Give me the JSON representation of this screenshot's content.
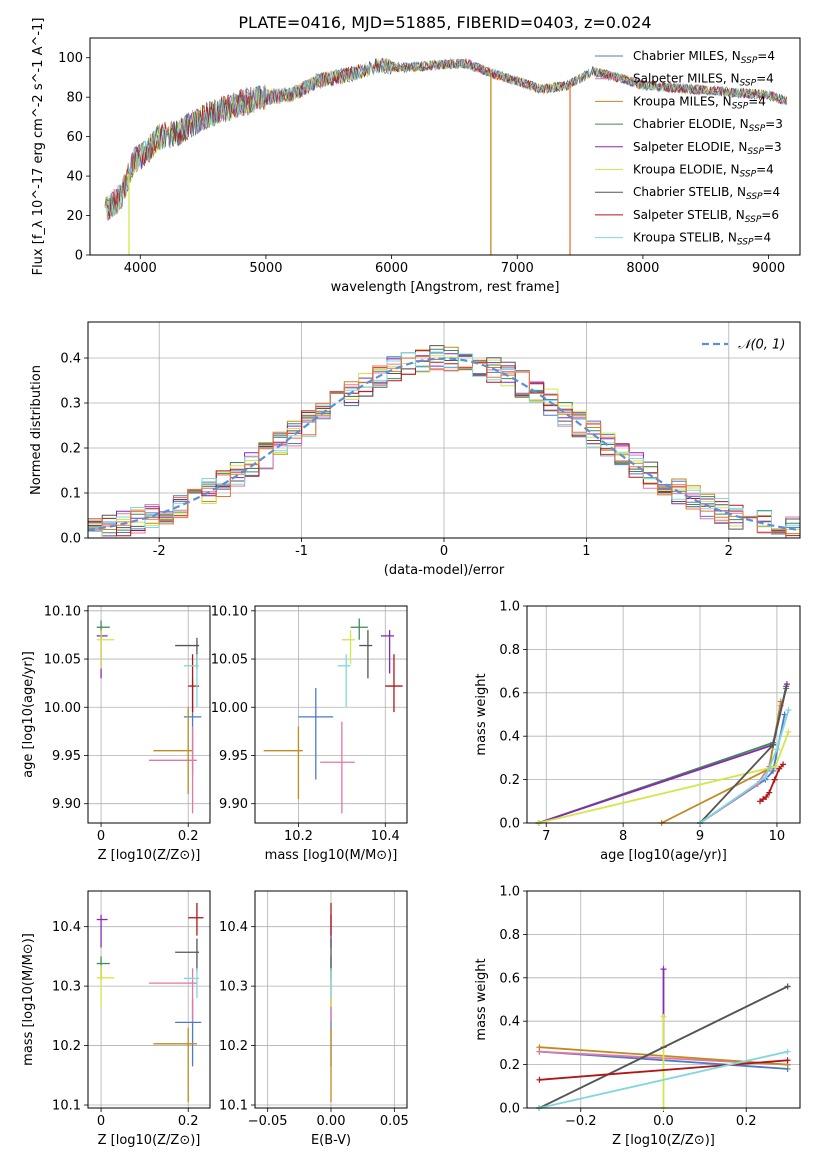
{
  "figure": {
    "title": "PLATE=0416, MJD=51885, FIBERID=0403, z=0.024"
  },
  "models": [
    {
      "name": "Chabrier MILES",
      "nssp": "4",
      "color": "#4e79c8"
    },
    {
      "name": "Salpeter MILES",
      "nssp": "4",
      "color": "#e377a8"
    },
    {
      "name": "Kroupa MILES",
      "nssp": "4",
      "color": "#c28a20"
    },
    {
      "name": "Chabrier ELODIE",
      "nssp": "3",
      "color": "#3f8a58"
    },
    {
      "name": "Salpeter ELODIE",
      "nssp": "3",
      "color": "#8a28b4"
    },
    {
      "name": "Kroupa ELODIE",
      "nssp": "4",
      "color": "#d4e64a"
    },
    {
      "name": "Chabrier STELIB",
      "nssp": "4",
      "color": "#555555"
    },
    {
      "name": "Salpeter STELIB",
      "nssp": "6",
      "color": "#b01818"
    },
    {
      "name": "Kroupa STELIB",
      "nssp": "4",
      "color": "#7ed8dc"
    }
  ],
  "chart_data": [
    {
      "id": "spectrum",
      "type": "line",
      "xlabel": "wavelength [Angstrom, rest frame]",
      "ylabel": "Flux [f_λ 10^-17 erg cm^-2 s^-1 A^-1]",
      "xlim": [
        3600,
        9250
      ],
      "ylim": [
        0,
        110
      ],
      "xticks": [
        4000,
        5000,
        6000,
        7000,
        8000,
        9000
      ],
      "yticks": [
        0,
        20,
        40,
        60,
        80,
        100
      ],
      "grid": false,
      "legend": "top-right",
      "continuum": [
        [
          3720,
          22
        ],
        [
          3850,
          30
        ],
        [
          3950,
          48
        ],
        [
          4050,
          52
        ],
        [
          4150,
          60
        ],
        [
          4300,
          62
        ],
        [
          4500,
          70
        ],
        [
          4800,
          77
        ],
        [
          5000,
          80
        ],
        [
          5200,
          81
        ],
        [
          5400,
          88
        ],
        [
          5700,
          92
        ],
        [
          5900,
          96
        ],
        [
          6100,
          95
        ],
        [
          6300,
          96
        ],
        [
          6500,
          97
        ],
        [
          6600,
          97
        ],
        [
          6800,
          92
        ],
        [
          7000,
          88
        ],
        [
          7200,
          84
        ],
        [
          7400,
          86
        ],
        [
          7600,
          93
        ],
        [
          7800,
          90
        ],
        [
          8000,
          86
        ],
        [
          8200,
          85
        ],
        [
          8400,
          84
        ],
        [
          8600,
          83
        ],
        [
          8800,
          82
        ],
        [
          9000,
          81
        ],
        [
          9150,
          78
        ]
      ],
      "drops": [
        [
          3910,
          0
        ],
        [
          6790,
          0
        ],
        [
          7420,
          0
        ]
      ]
    },
    {
      "id": "residuals",
      "type": "histogram",
      "xlabel": "(data-model)/error",
      "ylabel": "Normed distribution",
      "xlim": [
        -2.5,
        2.5
      ],
      "ylim": [
        0,
        0.48
      ],
      "xticks": [
        -2,
        -1,
        0,
        1,
        2
      ],
      "yticks": [
        0.0,
        0.1,
        0.2,
        0.3,
        0.4
      ],
      "grid": true,
      "reference": {
        "label": "𝒩(0, 1)",
        "mean": 0,
        "sigma": 1
      },
      "bin_width": 0.1
    },
    {
      "id": "age-vs-z",
      "type": "errorbar",
      "xlabel": "Z [log10(Z/Z⊙)]",
      "ylabel": "age  [log10(age/yr)]",
      "xlim": [
        -0.03,
        0.25
      ],
      "ylim": [
        9.88,
        10.105
      ],
      "xticks": [
        0.0,
        0.2
      ],
      "yticks": [
        9.9,
        9.95,
        10.0,
        10.05,
        10.1
      ],
      "grid": true,
      "points": [
        {
          "x": 0.21,
          "y": 9.99,
          "xlo": 0.19,
          "xhi": 0.23,
          "ylo": 9.93,
          "yhi": 10.03
        },
        {
          "x": 0.21,
          "y": 9.945,
          "xlo": 0.11,
          "xhi": 0.22,
          "ylo": 9.89,
          "yhi": 9.98
        },
        {
          "x": 0.2,
          "y": 9.955,
          "xlo": 0.12,
          "xhi": 0.21,
          "ylo": 9.91,
          "yhi": 10.0
        },
        {
          "x": 0.0,
          "y": 10.083,
          "xlo": -0.01,
          "xhi": 0.02,
          "ylo": 10.07,
          "yhi": 10.09
        },
        {
          "x": 0.0,
          "y": 10.074,
          "xlo": -0.01,
          "xhi": 0.015,
          "ylo": 10.03,
          "yhi": 10.08
        },
        {
          "x": 0.0,
          "y": 10.07,
          "xlo": -0.01,
          "xhi": 0.03,
          "ylo": 10.04,
          "yhi": 10.08
        },
        {
          "x": 0.22,
          "y": 10.064,
          "xlo": 0.17,
          "xhi": 0.225,
          "ylo": 10.04,
          "yhi": 10.072
        },
        {
          "x": 0.21,
          "y": 10.022,
          "xlo": 0.2,
          "xhi": 0.225,
          "ylo": 9.995,
          "yhi": 10.055
        },
        {
          "x": 0.22,
          "y": 10.043,
          "xlo": 0.19,
          "xhi": 0.225,
          "ylo": 10.0,
          "yhi": 10.055
        }
      ]
    },
    {
      "id": "age-vs-mass",
      "type": "errorbar",
      "xlabel": "mass [log10(M/M⊙)]",
      "ylabel": "",
      "xlim": [
        10.1,
        10.45
      ],
      "ylim": [
        9.88,
        10.105
      ],
      "xticks": [
        10.2,
        10.4
      ],
      "yticks": [
        9.9,
        9.95,
        10.0,
        10.05,
        10.1
      ],
      "grid": true,
      "points": [
        {
          "x": 10.24,
          "y": 9.99,
          "xlo": 10.2,
          "xhi": 10.28,
          "ylo": 9.925,
          "yhi": 10.02
        },
        {
          "x": 10.3,
          "y": 9.943,
          "xlo": 10.25,
          "xhi": 10.33,
          "ylo": 9.89,
          "yhi": 9.985
        },
        {
          "x": 10.2,
          "y": 9.955,
          "xlo": 10.12,
          "xhi": 10.21,
          "ylo": 9.905,
          "yhi": 9.98
        },
        {
          "x": 10.34,
          "y": 10.083,
          "xlo": 10.32,
          "xhi": 10.36,
          "ylo": 10.07,
          "yhi": 10.092
        },
        {
          "x": 10.41,
          "y": 10.074,
          "xlo": 10.39,
          "xhi": 10.42,
          "ylo": 10.035,
          "yhi": 10.08
        },
        {
          "x": 10.32,
          "y": 10.07,
          "xlo": 10.3,
          "xhi": 10.33,
          "ylo": 10.045,
          "yhi": 10.08
        },
        {
          "x": 10.36,
          "y": 10.064,
          "xlo": 10.34,
          "xhi": 10.37,
          "ylo": 10.03,
          "yhi": 10.08
        },
        {
          "x": 10.42,
          "y": 10.022,
          "xlo": 10.4,
          "xhi": 10.44,
          "ylo": 9.995,
          "yhi": 10.055
        },
        {
          "x": 10.31,
          "y": 10.043,
          "xlo": 10.29,
          "xhi": 10.32,
          "ylo": 10.0,
          "yhi": 10.055
        }
      ]
    },
    {
      "id": "mass-weight-vs-age",
      "type": "line",
      "xlabel": "age  [log10(age/yr)]",
      "ylabel": "mass weight",
      "xlim": [
        6.75,
        10.3
      ],
      "ylim": [
        0,
        1.0
      ],
      "xticks": [
        7,
        8,
        9,
        10
      ],
      "yticks": [
        0.0,
        0.2,
        0.4,
        0.6,
        0.8,
        1.0
      ],
      "grid": true,
      "series": [
        {
          "x": [
            9.0,
            9.85,
            9.95,
            10.1
          ],
          "y": [
            0.0,
            0.2,
            0.24,
            0.5
          ]
        },
        {
          "x": [
            9.0,
            9.75,
            9.9,
            10.05
          ],
          "y": [
            0.0,
            0.18,
            0.26,
            0.54
          ]
        },
        {
          "x": [
            8.5,
            9.9,
            10.05
          ],
          "y": [
            0.0,
            0.25,
            0.56
          ]
        },
        {
          "x": [
            6.9,
            9.95,
            10.12
          ],
          "y": [
            0.0,
            0.37,
            0.62
          ]
        },
        {
          "x": [
            6.9,
            9.95,
            10.13
          ],
          "y": [
            0.0,
            0.36,
            0.64
          ]
        },
        {
          "x": [
            6.9,
            9.98,
            10.15
          ],
          "y": [
            0.0,
            0.26,
            0.42
          ]
        },
        {
          "x": [
            9.0,
            9.95,
            10.12
          ],
          "y": [
            0.0,
            0.36,
            0.63
          ]
        },
        {
          "x": [
            9.78,
            9.82,
            9.86,
            9.9,
            9.97,
            10.03,
            10.08
          ],
          "y": [
            0.1,
            0.11,
            0.12,
            0.14,
            0.2,
            0.25,
            0.27
          ]
        },
        {
          "x": [
            9.0,
            9.85,
            10.0,
            10.15
          ],
          "y": [
            0.0,
            0.21,
            0.34,
            0.52
          ]
        }
      ]
    },
    {
      "id": "mass-vs-z",
      "type": "errorbar",
      "xlabel": "Z [log10(Z/Z⊙)]",
      "ylabel": "mass [log10(M/M⊙)]",
      "xlim": [
        -0.03,
        0.25
      ],
      "ylim": [
        10.095,
        10.46
      ],
      "xticks": [
        0.0,
        0.2
      ],
      "yticks": [
        10.1,
        10.2,
        10.3,
        10.4
      ],
      "grid": true,
      "points": [
        {
          "x": 0.21,
          "y": 10.239,
          "xlo": 0.17,
          "xhi": 0.23,
          "ylo": 10.165,
          "yhi": 10.28
        },
        {
          "x": 0.21,
          "y": 10.305,
          "xlo": 0.11,
          "xhi": 0.22,
          "ylo": 10.24,
          "yhi": 10.33
        },
        {
          "x": 0.2,
          "y": 10.203,
          "xlo": 0.12,
          "xhi": 0.22,
          "ylo": 10.105,
          "yhi": 10.23
        },
        {
          "x": 0.0,
          "y": 10.338,
          "xlo": -0.01,
          "xhi": 0.02,
          "ylo": 10.31,
          "yhi": 10.35
        },
        {
          "x": 0.0,
          "y": 10.412,
          "xlo": -0.01,
          "xhi": 0.015,
          "ylo": 10.365,
          "yhi": 10.42
        },
        {
          "x": 0.0,
          "y": 10.314,
          "xlo": -0.01,
          "xhi": 0.03,
          "ylo": 10.265,
          "yhi": 10.335
        },
        {
          "x": 0.22,
          "y": 10.357,
          "xlo": 0.17,
          "xhi": 0.225,
          "ylo": 10.325,
          "yhi": 10.38
        },
        {
          "x": 0.22,
          "y": 10.415,
          "xlo": 0.2,
          "xhi": 0.235,
          "ylo": 10.385,
          "yhi": 10.44
        },
        {
          "x": 0.22,
          "y": 10.313,
          "xlo": 0.19,
          "xhi": 0.225,
          "ylo": 10.28,
          "yhi": 10.33
        }
      ]
    },
    {
      "id": "mass-vs-ebv",
      "type": "errorbar",
      "xlabel": "E(B-V)",
      "ylabel": "",
      "xlim": [
        -0.06,
        0.06
      ],
      "ylim": [
        10.095,
        10.46
      ],
      "xticks": [
        -0.05,
        0.0,
        0.05
      ],
      "xticklabels": [
        "−0.05",
        "0.00",
        "0.05"
      ],
      "yticks": [
        10.1,
        10.2,
        10.3,
        10.4
      ],
      "grid": true,
      "points": [
        {
          "x": 0.0,
          "y": 10.239,
          "ylo": 10.165,
          "yhi": 10.28
        },
        {
          "x": 0.0,
          "y": 10.305,
          "ylo": 10.24,
          "yhi": 10.33
        },
        {
          "x": 0.0,
          "y": 10.203,
          "ylo": 10.105,
          "yhi": 10.23
        },
        {
          "x": 0.0,
          "y": 10.338,
          "ylo": 10.31,
          "yhi": 10.35
        },
        {
          "x": 0.0,
          "y": 10.412,
          "ylo": 10.365,
          "yhi": 10.42
        },
        {
          "x": 0.0,
          "y": 10.314,
          "ylo": 10.265,
          "yhi": 10.335
        },
        {
          "x": 0.0,
          "y": 10.357,
          "ylo": 10.325,
          "yhi": 10.38
        },
        {
          "x": 0.0,
          "y": 10.415,
          "ylo": 10.385,
          "yhi": 10.44
        },
        {
          "x": 0.0,
          "y": 10.313,
          "ylo": 10.28,
          "yhi": 10.33
        }
      ]
    },
    {
      "id": "mass-weight-vs-z",
      "type": "line",
      "xlabel": "Z [log10(Z/Z⊙)]",
      "ylabel": "mass weight",
      "xlim": [
        -0.33,
        0.33
      ],
      "ylim": [
        0,
        1.0
      ],
      "xticks": [
        -0.2,
        0.0,
        0.2
      ],
      "xticklabels": [
        "−0.2",
        "0.0",
        "0.2"
      ],
      "yticks": [
        0.0,
        0.2,
        0.4,
        0.6,
        0.8,
        1.0
      ],
      "grid": true,
      "series": [
        {
          "x": [
            -0.3,
            0.3
          ],
          "y": [
            0.26,
            0.18
          ]
        },
        {
          "x": [
            -0.3,
            0.0,
            0.3
          ],
          "y": [
            0.26,
            0.23,
            0.2
          ]
        },
        {
          "x": [
            -0.3,
            0.3
          ],
          "y": [
            0.28,
            0.2
          ]
        },
        {
          "x": [
            -0.3,
            0.3
          ],
          "y": [
            0.0,
            0.56
          ]
        },
        {
          "x": [
            0.0,
            0.0
          ],
          "y": [
            0.28,
            0.64
          ]
        },
        {
          "x": [
            0.0,
            0.0
          ],
          "y": [
            0.0,
            0.42
          ]
        },
        {
          "x": [
            -0.3,
            0.3
          ],
          "y": [
            0.0,
            0.56
          ]
        },
        {
          "x": [
            -0.3,
            0.3
          ],
          "y": [
            0.13,
            0.22
          ]
        },
        {
          "x": [
            -0.3,
            0.3
          ],
          "y": [
            0.0,
            0.26
          ]
        }
      ]
    }
  ]
}
